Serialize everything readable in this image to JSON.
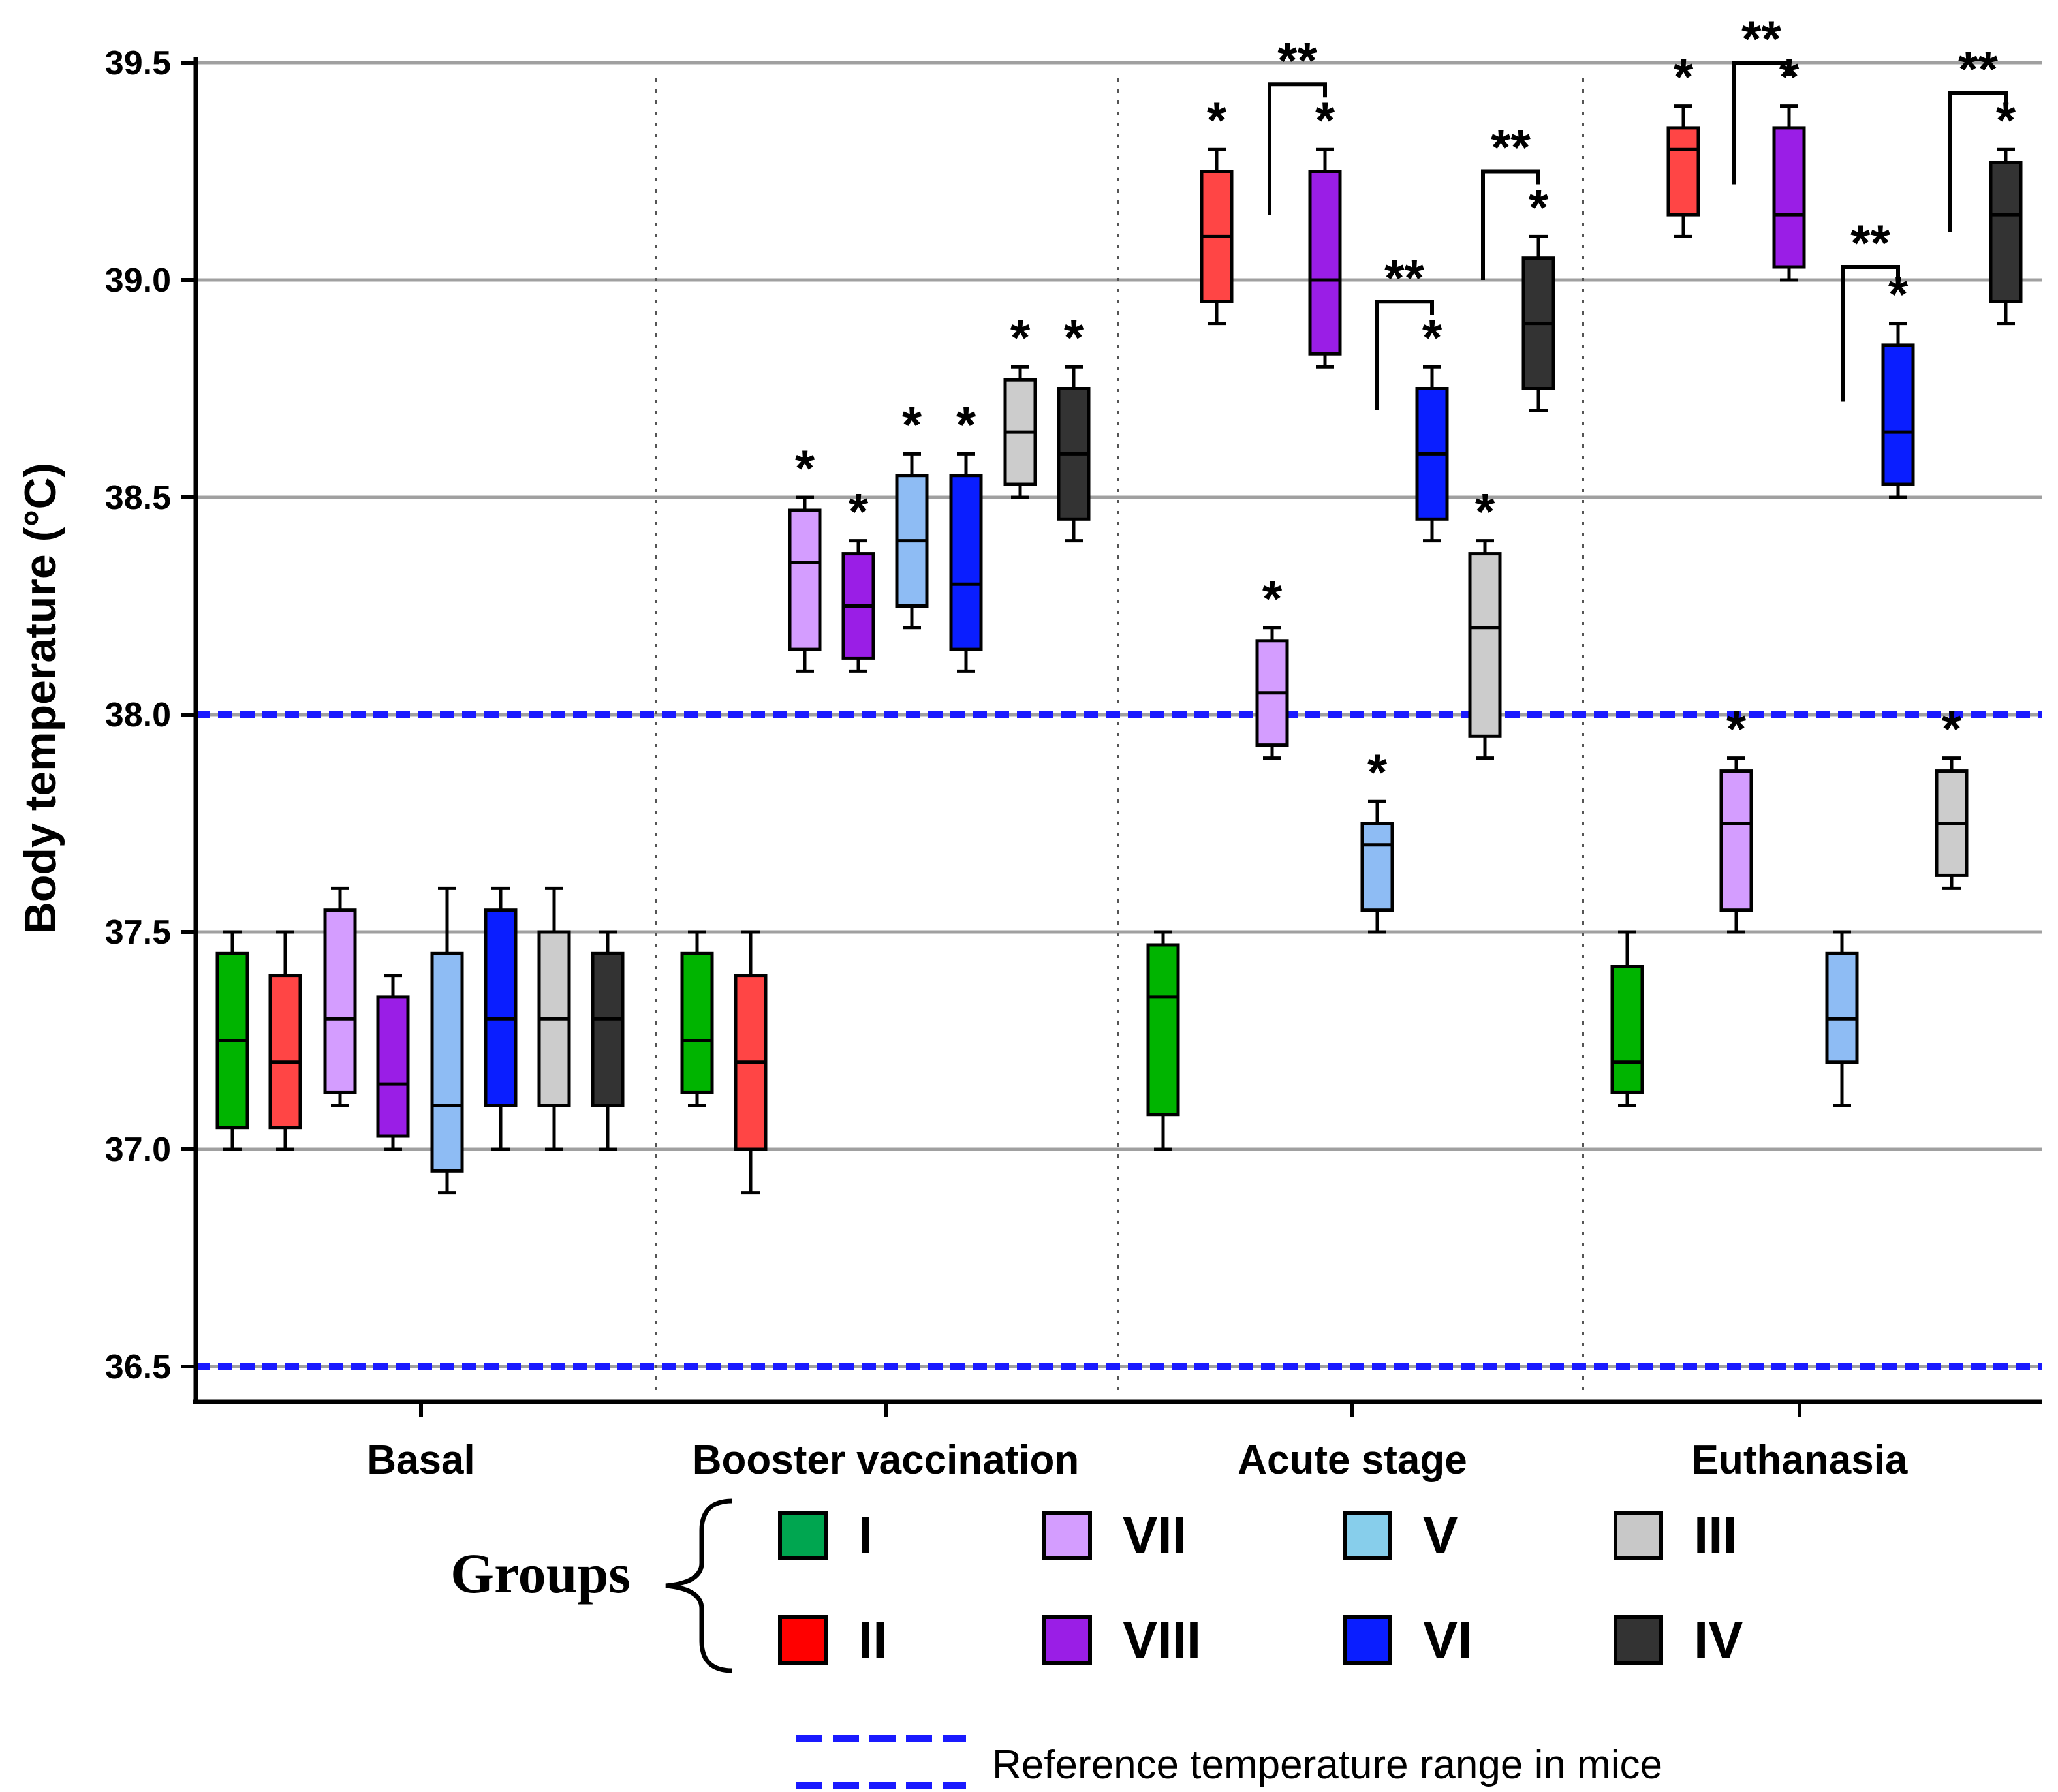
{
  "chart_data": {
    "type": "boxplot",
    "ylabel": "Body temperature (°C)",
    "ylim": [
      36.4,
      39.6
    ],
    "yticks": [
      "36.5",
      "37.0",
      "37.5",
      "38.0",
      "38.5",
      "39.0",
      "39.5"
    ],
    "grid": "horizontal",
    "reference_range": {
      "lower": 36.5,
      "upper": 38.0,
      "label": "Reference temperature range in mice",
      "color": "#1a1aff"
    },
    "categories": [
      "Basal",
      "Booster vaccination",
      "Acute stage",
      "Euthanasia"
    ],
    "legend_title": "Groups",
    "groups": [
      {
        "name": "I",
        "color": "#00b400"
      },
      {
        "name": "II",
        "color": "#ff4545"
      },
      {
        "name": "VII",
        "color": "#d49dff"
      },
      {
        "name": "VIII",
        "color": "#9a1ee6"
      },
      {
        "name": "V",
        "color": "#8ebcf4"
      },
      {
        "name": "VI",
        "color": "#0a1eff"
      },
      {
        "name": "III",
        "color": "#cccccc"
      },
      {
        "name": "IV",
        "color": "#333333"
      }
    ],
    "legend_layout": [
      {
        "group": "I",
        "legend_color": "#00a650"
      },
      {
        "group": "VII",
        "legend_color": "#d49dff"
      },
      {
        "group": "V",
        "legend_color": "#87ceeb"
      },
      {
        "group": "III",
        "legend_color": "#c8c8c8"
      },
      {
        "group": "II",
        "legend_color": "#ff0000"
      },
      {
        "group": "VIII",
        "legend_color": "#9a1ee6"
      },
      {
        "group": "VI",
        "legend_color": "#0a1eff"
      },
      {
        "group": "IV",
        "legend_color": "#333333"
      }
    ],
    "boxes": [
      {
        "category": "Basal",
        "group": "I",
        "min": 37.0,
        "q1": 37.05,
        "median": 37.25,
        "q3": 37.45,
        "max": 37.5,
        "sig": ""
      },
      {
        "category": "Basal",
        "group": "II",
        "min": 37.0,
        "q1": 37.05,
        "median": 37.2,
        "q3": 37.4,
        "max": 37.5,
        "sig": ""
      },
      {
        "category": "Basal",
        "group": "VII",
        "min": 37.1,
        "q1": 37.13,
        "median": 37.3,
        "q3": 37.55,
        "max": 37.6,
        "sig": ""
      },
      {
        "category": "Basal",
        "group": "VIII",
        "min": 37.0,
        "q1": 37.03,
        "median": 37.15,
        "q3": 37.35,
        "max": 37.4,
        "sig": ""
      },
      {
        "category": "Basal",
        "group": "V",
        "min": 36.9,
        "q1": 36.95,
        "median": 37.1,
        "q3": 37.45,
        "max": 37.6,
        "sig": ""
      },
      {
        "category": "Basal",
        "group": "VI",
        "min": 37.0,
        "q1": 37.1,
        "median": 37.3,
        "q3": 37.55,
        "max": 37.6,
        "sig": ""
      },
      {
        "category": "Basal",
        "group": "III",
        "min": 37.0,
        "q1": 37.1,
        "median": 37.3,
        "q3": 37.5,
        "max": 37.6,
        "sig": ""
      },
      {
        "category": "Basal",
        "group": "IV",
        "min": 37.0,
        "q1": 37.1,
        "median": 37.3,
        "q3": 37.45,
        "max": 37.5,
        "sig": ""
      },
      {
        "category": "Booster vaccination",
        "group": "I",
        "min": 37.1,
        "q1": 37.13,
        "median": 37.25,
        "q3": 37.45,
        "max": 37.5,
        "sig": ""
      },
      {
        "category": "Booster vaccination",
        "group": "II",
        "min": 36.9,
        "q1": 37.0,
        "median": 37.2,
        "q3": 37.4,
        "max": 37.5,
        "sig": ""
      },
      {
        "category": "Booster vaccination",
        "group": "VII",
        "min": 38.1,
        "q1": 38.15,
        "median": 38.35,
        "q3": 38.47,
        "max": 38.5,
        "sig": "*"
      },
      {
        "category": "Booster vaccination",
        "group": "VIII",
        "min": 38.1,
        "q1": 38.13,
        "median": 38.25,
        "q3": 38.37,
        "max": 38.4,
        "sig": "*"
      },
      {
        "category": "Booster vaccination",
        "group": "V",
        "min": 38.2,
        "q1": 38.25,
        "median": 38.4,
        "q3": 38.55,
        "max": 38.6,
        "sig": "*"
      },
      {
        "category": "Booster vaccination",
        "group": "VI",
        "min": 38.1,
        "q1": 38.15,
        "median": 38.3,
        "q3": 38.55,
        "max": 38.6,
        "sig": "*"
      },
      {
        "category": "Booster vaccination",
        "group": "III",
        "min": 38.5,
        "q1": 38.53,
        "median": 38.65,
        "q3": 38.77,
        "max": 38.8,
        "sig": "*"
      },
      {
        "category": "Booster vaccination",
        "group": "IV",
        "min": 38.4,
        "q1": 38.45,
        "median": 38.6,
        "q3": 38.75,
        "max": 38.8,
        "sig": "*"
      },
      {
        "category": "Acute stage",
        "group": "I",
        "min": 37.0,
        "q1": 37.08,
        "median": 37.35,
        "q3": 37.47,
        "max": 37.5,
        "sig": ""
      },
      {
        "category": "Acute stage",
        "group": "II",
        "min": 38.9,
        "q1": 38.95,
        "median": 39.1,
        "q3": 39.25,
        "max": 39.3,
        "sig": "*"
      },
      {
        "category": "Acute stage",
        "group": "VII",
        "min": 37.9,
        "q1": 37.93,
        "median": 38.05,
        "q3": 38.17,
        "max": 38.2,
        "sig": "*"
      },
      {
        "category": "Acute stage",
        "group": "VIII",
        "min": 38.8,
        "q1": 38.83,
        "median": 39.0,
        "q3": 39.25,
        "max": 39.3,
        "sig": "*"
      },
      {
        "category": "Acute stage",
        "group": "V",
        "min": 37.5,
        "q1": 37.55,
        "median": 37.7,
        "q3": 37.75,
        "max": 37.8,
        "sig": "*"
      },
      {
        "category": "Acute stage",
        "group": "VI",
        "min": 38.4,
        "q1": 38.45,
        "median": 38.6,
        "q3": 38.75,
        "max": 38.8,
        "sig": "*"
      },
      {
        "category": "Acute stage",
        "group": "III",
        "min": 37.9,
        "q1": 37.95,
        "median": 38.2,
        "q3": 38.37,
        "max": 38.4,
        "sig": "*"
      },
      {
        "category": "Acute stage",
        "group": "IV",
        "min": 38.7,
        "q1": 38.75,
        "median": 38.9,
        "q3": 39.05,
        "max": 39.1,
        "sig": "*"
      },
      {
        "category": "Euthanasia",
        "group": "II",
        "min": 39.1,
        "q1": 39.15,
        "median": 39.3,
        "q3": 39.35,
        "max": 39.4,
        "sig": "*"
      },
      {
        "category": "Euthanasia",
        "group": "VIII",
        "min": 39.0,
        "q1": 39.03,
        "median": 39.15,
        "q3": 39.35,
        "max": 39.4,
        "sig": "*"
      },
      {
        "category": "Euthanasia",
        "group": "VI",
        "min": 38.5,
        "q1": 38.53,
        "median": 38.65,
        "q3": 38.85,
        "max": 38.9,
        "sig": "*"
      },
      {
        "category": "Euthanasia",
        "group": "IV",
        "min": 38.9,
        "q1": 38.95,
        "median": 39.15,
        "q3": 39.27,
        "max": 39.3,
        "sig": "*"
      },
      {
        "category": "Euthanasia",
        "group": "I",
        "min": 37.1,
        "q1": 37.13,
        "median": 37.2,
        "q3": 37.42,
        "max": 37.5,
        "sig": ""
      },
      {
        "category": "Euthanasia",
        "group": "VII",
        "min": 37.5,
        "q1": 37.55,
        "median": 37.75,
        "q3": 37.87,
        "max": 37.9,
        "sig": "*"
      },
      {
        "category": "Euthanasia",
        "group": "V",
        "min": 37.1,
        "q1": 37.2,
        "median": 37.3,
        "q3": 37.45,
        "max": 37.5,
        "sig": ""
      },
      {
        "category": "Euthanasia",
        "group": "III",
        "min": 37.6,
        "q1": 37.63,
        "median": 37.75,
        "q3": 37.87,
        "max": 37.9,
        "sig": "*"
      }
    ],
    "brackets": [
      {
        "category": "Acute stage",
        "group": "VIII",
        "label": "**",
        "from_value": 39.15,
        "top_value": 39.45
      },
      {
        "category": "Acute stage",
        "group": "VI",
        "label": "**",
        "from_value": 38.7,
        "top_value": 38.95
      },
      {
        "category": "Acute stage",
        "group": "IV",
        "label": "**",
        "from_value": 39.0,
        "top_value": 39.25
      },
      {
        "category": "Euthanasia",
        "group": "VIII",
        "label": "**",
        "from_value": 39.22,
        "top_value": 39.5
      },
      {
        "category": "Euthanasia",
        "group": "VI",
        "label": "**",
        "from_value": 38.72,
        "top_value": 39.03
      },
      {
        "category": "Euthanasia",
        "group": "IV",
        "label": "**",
        "from_value": 39.11,
        "top_value": 39.43
      }
    ]
  }
}
